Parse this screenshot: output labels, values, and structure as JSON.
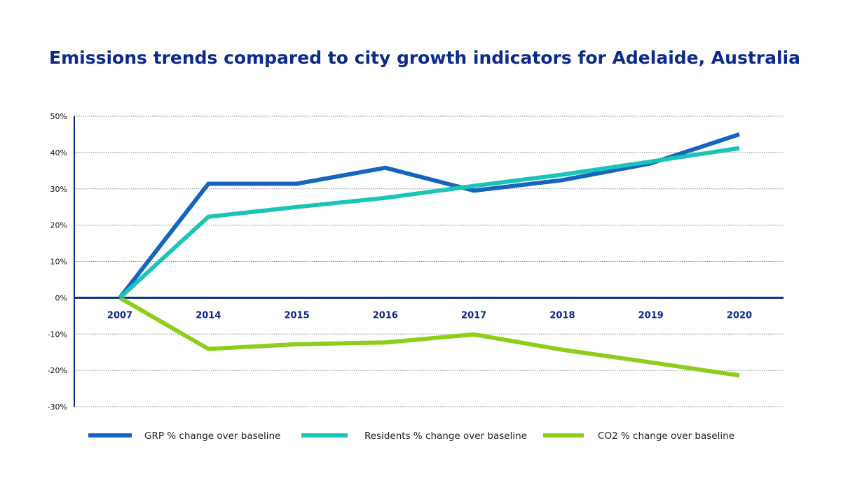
{
  "chart_data": {
    "type": "line",
    "title": "Emissions trends compared to city growth indicators for Adelaide, Australia",
    "xlabel": "",
    "ylabel": "",
    "categories": [
      "2007",
      "2014",
      "2015",
      "2016",
      "2017",
      "2018",
      "2019",
      "2020"
    ],
    "ylim": [
      -30,
      50
    ],
    "yticks": [
      50,
      40,
      30,
      20,
      10,
      0,
      -10,
      -20,
      -30
    ],
    "ytick_labels": [
      "50%",
      "40%",
      "30%",
      "20%",
      "10%",
      "0%",
      "-10%",
      "-20%",
      "-30%"
    ],
    "grid": true,
    "legend_position": "bottom",
    "series": [
      {
        "name": "GRP % change over baseline",
        "color": "#1565c0",
        "values": [
          0,
          31.4,
          31.4,
          35.8,
          29.5,
          32.4,
          37,
          45
        ]
      },
      {
        "name": "Residents % change over baseline",
        "color": "#1cc4b7",
        "values": [
          0,
          22.3,
          25,
          27.5,
          30.8,
          33.9,
          37.5,
          41.2
        ]
      },
      {
        "name": "CO2 % change over baseline",
        "color": "#8ccf1a",
        "values": [
          0,
          -14.1,
          -12.8,
          -12.3,
          -10.1,
          -14.3,
          -17.8,
          -21.4
        ]
      }
    ]
  }
}
